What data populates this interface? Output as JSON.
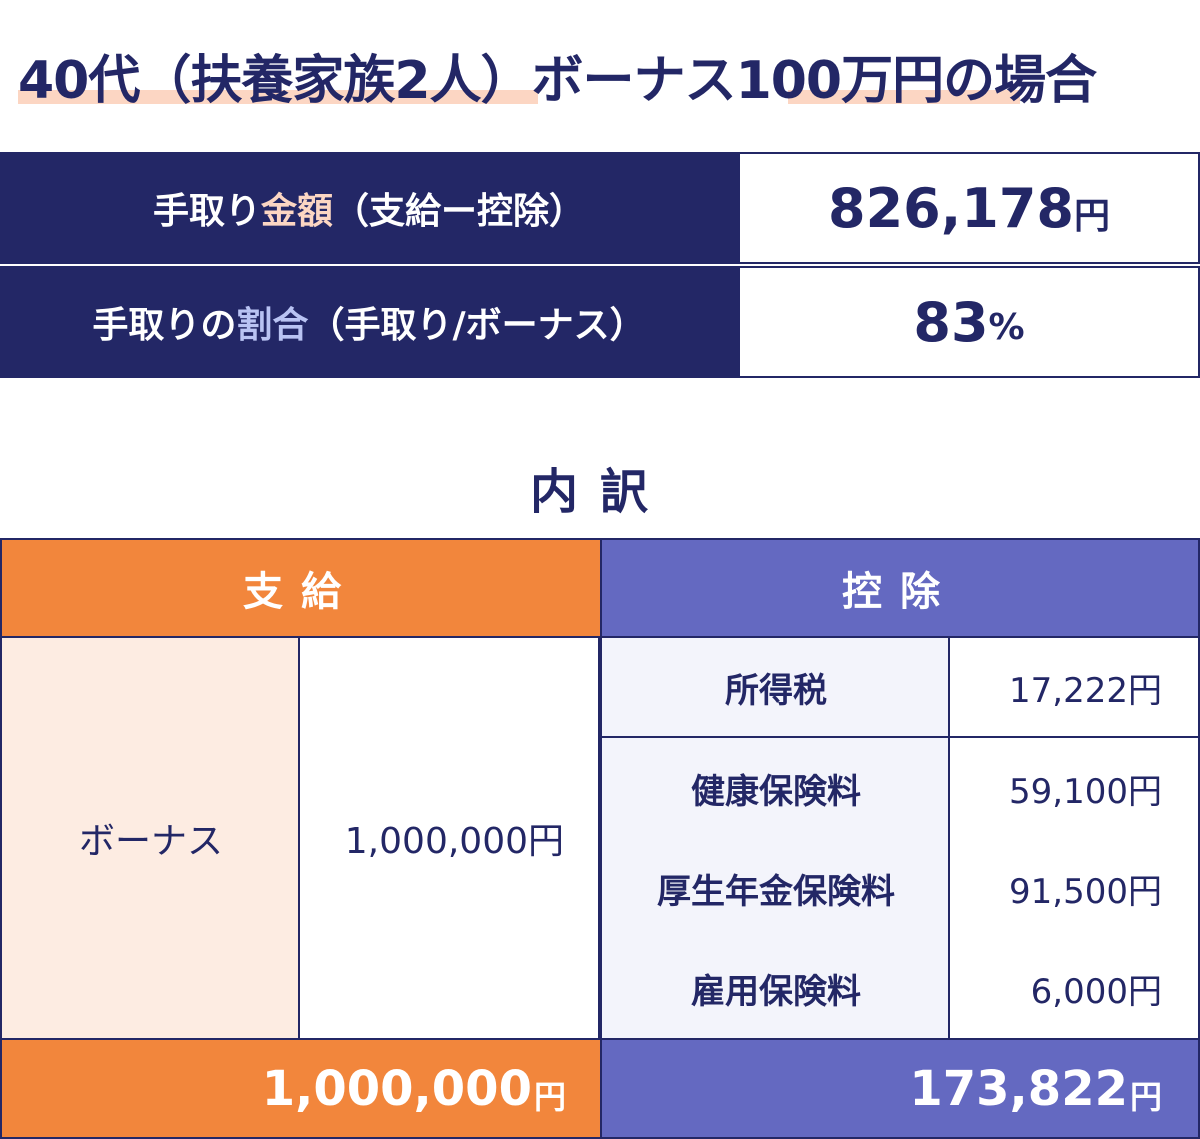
{
  "title": {
    "part1": "40代（扶養家族2人）",
    "part2": "ボーナス",
    "part3": "100万円",
    "part4": "の場合"
  },
  "summary": {
    "takehome_label_a": "手取り",
    "takehome_label_b": "金額",
    "takehome_label_c": "（支給ー控除）",
    "takehome_value": "826,178",
    "takehome_unit": "円",
    "ratio_label_a": "手取りの",
    "ratio_label_b": "割合",
    "ratio_label_c": "（手取り/ボーナス）",
    "ratio_value": "83",
    "ratio_unit": "%"
  },
  "breakdown": {
    "heading": "内訳",
    "pay_header": "支給",
    "deduction_header": "控除",
    "pay_item_label": "ボーナス",
    "pay_item_value": "1,000,000円",
    "deductions": [
      {
        "label": "所得税",
        "value": "17,222円"
      },
      {
        "label": "健康保険料",
        "value": "59,100円"
      },
      {
        "label": "厚生年金保険料",
        "value": "91,500円"
      },
      {
        "label": "雇用保険料",
        "value": "6,000円"
      }
    ],
    "pay_total": "1,000,000",
    "deduction_total": "173,822",
    "total_unit": "円"
  },
  "colors": {
    "navy": "#232766",
    "orange": "#f2863c",
    "purple": "#6469c1",
    "peach_highlight": "#fcd6c3"
  }
}
